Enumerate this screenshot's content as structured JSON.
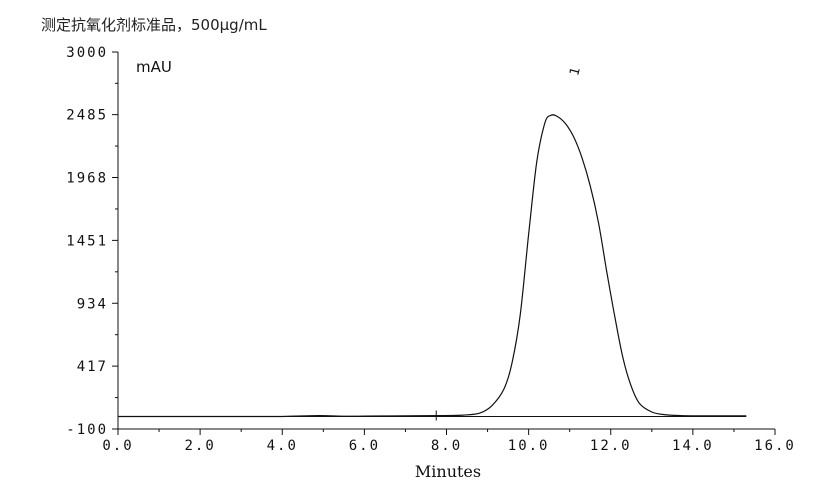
{
  "chart_data": {
    "type": "line",
    "title": "测定抗氧化剂标准品，500µg/mL",
    "xlabel": "Minutes",
    "ylabel": "mAU",
    "xlim": [
      0,
      16
    ],
    "ylim": [
      -100,
      3000
    ],
    "x_ticks": [
      "0.0",
      "2.0",
      "4.0",
      "6.0",
      "8.0",
      "10.0",
      "12.0",
      "14.0",
      "16.0"
    ],
    "x_tick_values": [
      0,
      2,
      4,
      6,
      8,
      10,
      12,
      14,
      16
    ],
    "y_ticks": [
      "-100",
      "417",
      "934",
      "1451",
      "1968",
      "2485",
      "3000"
    ],
    "y_tick_values": [
      -100,
      417,
      934,
      1451,
      1968,
      2485,
      3000
    ],
    "series": [
      {
        "x": [
          0.0,
          1.0,
          2.0,
          3.0,
          4.0,
          4.9,
          5.5,
          6.0,
          7.0,
          7.8,
          8.4,
          8.8,
          9.1,
          9.4,
          9.6,
          9.8,
          10.0,
          10.2,
          10.4,
          10.55,
          10.7,
          10.9,
          11.1,
          11.3,
          11.5,
          11.7,
          11.9,
          12.1,
          12.3,
          12.5,
          12.7,
          13.0,
          13.3,
          13.7,
          14.2,
          15.3
        ],
        "y": [
          3,
          3,
          3,
          3,
          3,
          10,
          5,
          6,
          8,
          10,
          14,
          30,
          90,
          230,
          450,
          850,
          1500,
          2100,
          2420,
          2480,
          2470,
          2410,
          2300,
          2130,
          1900,
          1600,
          1200,
          820,
          480,
          250,
          110,
          40,
          18,
          10,
          8,
          8
        ]
      }
    ],
    "baseline": {
      "x": [
        0.0,
        15.3
      ],
      "y": [
        3,
        3
      ]
    },
    "integration_markers": [
      7.75
    ],
    "annotations": [
      {
        "text": "1",
        "x": 11.2,
        "y": 2800
      }
    ],
    "grid": false,
    "legend": "none"
  }
}
